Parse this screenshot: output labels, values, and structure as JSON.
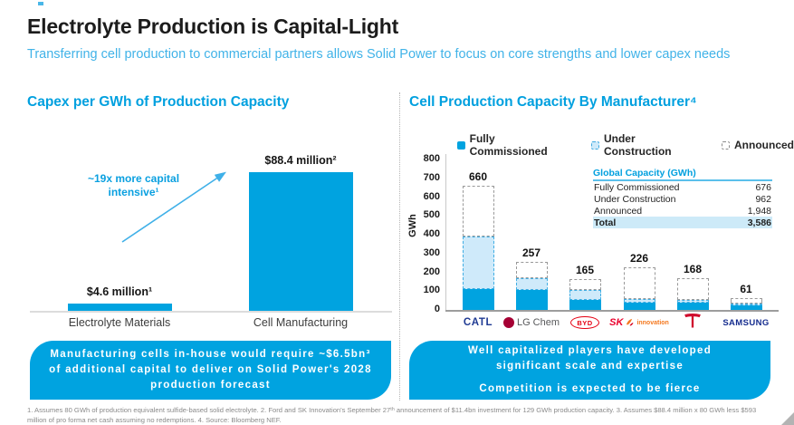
{
  "slide": {
    "title": "Electrolyte Production is Capital-Light",
    "subtitle": "Transferring cell production to commercial partners allows Solid Power to focus on core strengths and lower capex needs",
    "footnote": "1. Assumes 80 GWh of production equivalent sulfide-based solid electrolyte. 2. Ford and SK Innovation's September 27ᵗʰ announcement of $11.4bn investment for 129 GWh production capacity. 3. Assumes $88.4 million x 80 GWh less $593 million of pro forma net cash assuming no redemptions. 4. Source: Bloomberg NEF."
  },
  "left_section": {
    "title": "Capex per GWh of Production Capacity",
    "callout": "Manufacturing cells in-house would require ~$6.5bn³ of additional capital to deliver on Solid Power's 2028 production forecast"
  },
  "right_section": {
    "title": "Cell Production Capacity By Manufacturer⁴",
    "table": {
      "title": "Global Capacity (GWh)",
      "rows": [
        {
          "label": "Fully Commissioned",
          "value": "676"
        },
        {
          "label": "Under Construction",
          "value": "962"
        },
        {
          "label": "Announced",
          "value": "1,948"
        },
        {
          "label": "Total",
          "value": "3,586"
        }
      ]
    },
    "logos": [
      {
        "id": "catl",
        "text": "CATL"
      },
      {
        "id": "lgchem",
        "text": "LG Chem"
      },
      {
        "id": "byd",
        "text": "BYD"
      },
      {
        "id": "sk",
        "text": "SK",
        "text2": "innovation"
      },
      {
        "id": "tesla"
      },
      {
        "id": "samsung",
        "text": "SAMSUNG"
      }
    ],
    "callout_line1": "Well capitalized players have developed significant scale and expertise",
    "callout_line2": "Competition is expected to be fierce"
  },
  "colors": {
    "accent_blue": "#00a3e0",
    "light_blue_fill": "#cfeafa",
    "dashed_blue": "#41aee3",
    "dashed_gray": "#999999",
    "section_title_blue": "#00a0df",
    "subtitle_blue": "#41b3e8",
    "table_total_bg": "#cdeaf8",
    "footnote_gray": "#8a8a8a"
  },
  "chart_data": [
    {
      "type": "bar",
      "title": "Capex per GWh of Production Capacity",
      "categories": [
        "Electrolyte Materials",
        "Cell Manufacturing"
      ],
      "values": [
        4.6,
        88.4
      ],
      "unit": "$ million per GWh",
      "value_labels": [
        "$4.6 million¹",
        "$88.4 million²"
      ],
      "annotation": "~19x more capital intensive¹",
      "annotation_lines": [
        "~19x more capital",
        "intensive¹"
      ],
      "grid": false
    },
    {
      "type": "bar",
      "stacked": true,
      "title": "Cell Production Capacity By Manufacturer⁴",
      "categories": [
        "CATL",
        "LG Chem",
        "BYD",
        "SK Innovation",
        "Tesla",
        "Samsung"
      ],
      "series": [
        {
          "name": "Fully Commissioned",
          "values": [
            110,
            105,
            55,
            40,
            38,
            25
          ]
        },
        {
          "name": "Under Construction",
          "values": [
            280,
            65,
            50,
            20,
            17,
            10
          ]
        },
        {
          "name": "Announced",
          "values": [
            270,
            87,
            60,
            166,
            113,
            26
          ]
        }
      ],
      "totals": [
        660,
        257,
        165,
        226,
        168,
        61
      ],
      "xlabel": "",
      "ylabel": "GWh",
      "ylim": [
        0,
        800
      ],
      "yticks": [
        0,
        100,
        200,
        300,
        400,
        500,
        600,
        700,
        800
      ],
      "legend_position": "top",
      "grid": false
    }
  ]
}
